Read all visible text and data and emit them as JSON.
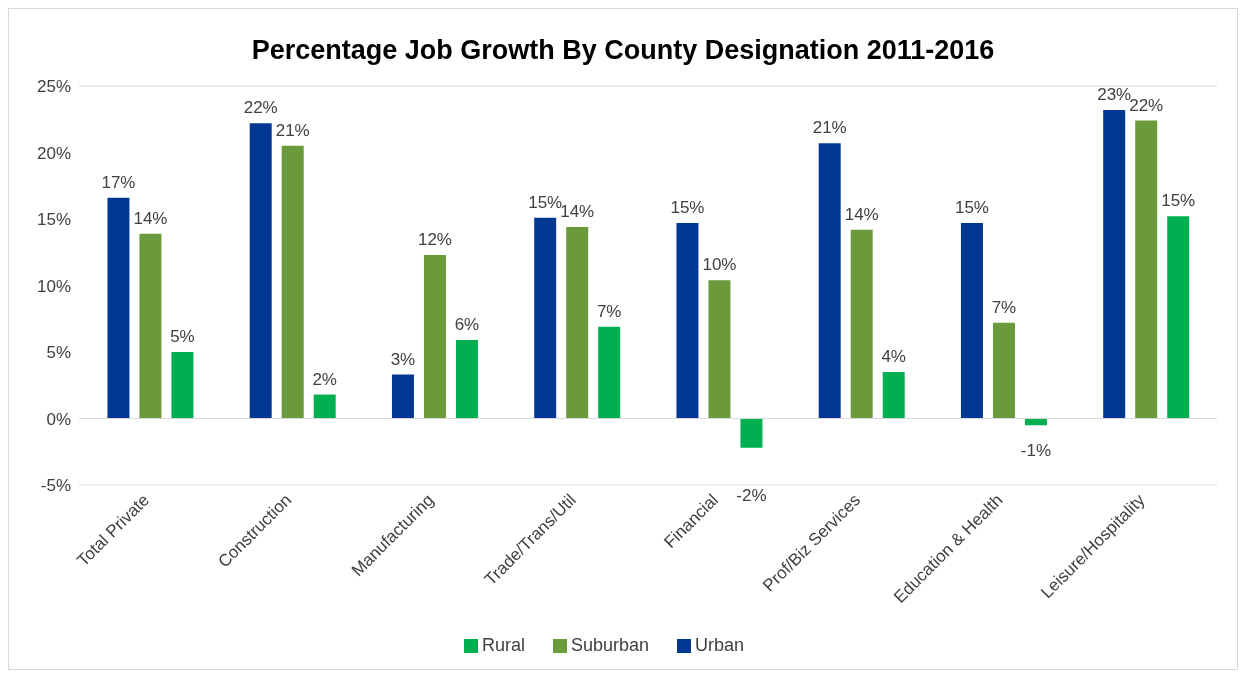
{
  "chart_data": {
    "type": "bar",
    "title": "Percentage Job Growth By County Designation 2011-2016",
    "categories": [
      "Total Private",
      "Construction",
      "Manufacturing",
      "Trade/Trans/Util",
      "Financial",
      "Prof/Biz Services",
      "Education & Health",
      "Leisure/Hospitality"
    ],
    "series": [
      {
        "name": "Urban",
        "color": "#023894",
        "values": [
          16.6,
          22.2,
          3.3,
          15.1,
          14.7,
          20.7,
          14.7,
          23.2
        ],
        "value_labels": [
          "17%",
          "22%",
          "3%",
          "15%",
          "15%",
          "21%",
          "15%",
          "23%"
        ]
      },
      {
        "name": "Suburban",
        "color": "#6a9a3c",
        "values": [
          13.9,
          20.5,
          12.3,
          14.4,
          10.4,
          14.2,
          7.2,
          22.4
        ],
        "value_labels": [
          "14%",
          "21%",
          "12%",
          "14%",
          "10%",
          "14%",
          "7%",
          "22%"
        ]
      },
      {
        "name": "Rural",
        "color": "#00b050",
        "values": [
          5.0,
          1.8,
          5.9,
          6.9,
          -2.2,
          3.5,
          -0.5,
          15.2
        ],
        "value_labels": [
          "5%",
          "2%",
          "6%",
          "7%",
          "-2%",
          "4%",
          "-1%",
          "15%"
        ]
      }
    ],
    "ylim": [
      -5,
      25
    ],
    "yticks": [
      {
        "value": -5,
        "label": "-5%"
      },
      {
        "value": 0,
        "label": "0%"
      },
      {
        "value": 5,
        "label": "5%"
      },
      {
        "value": 10,
        "label": "10%"
      },
      {
        "value": 15,
        "label": "15%"
      },
      {
        "value": 20,
        "label": "20%"
      },
      {
        "value": 25,
        "label": "25%"
      }
    ],
    "grid": "y",
    "legend": "bottom"
  }
}
